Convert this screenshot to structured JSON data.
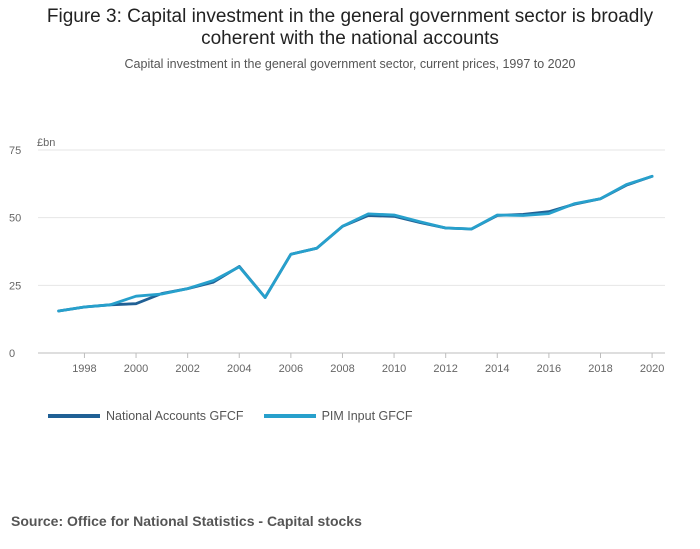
{
  "title_line1": "Figure 3: Capital investment in the general government sector is broadly",
  "title_line2": "coherent with the national accounts",
  "subtitle": "Capital investment in the general government sector, current prices, 1997 to 2020",
  "source": "Source: Office for National Statistics - Capital stocks",
  "chart_data": {
    "type": "line",
    "title": "Figure 3: Capital investment in the general government sector is broadly coherent with the national accounts",
    "subtitle": "Capital investment in the general government sector, current prices, 1997 to 2020",
    "xlabel": "",
    "ylabel": "£bn",
    "x": [
      1997,
      1998,
      1999,
      2000,
      2001,
      2002,
      2003,
      2004,
      2005,
      2006,
      2007,
      2008,
      2009,
      2010,
      2011,
      2012,
      2013,
      2014,
      2015,
      2016,
      2017,
      2018,
      2019,
      2020
    ],
    "xlim": [
      1996.2,
      2020.5
    ],
    "ylim": [
      0,
      75
    ],
    "xticks": [
      1998,
      2000,
      2002,
      2004,
      2006,
      2008,
      2010,
      2012,
      2014,
      2016,
      2018,
      2020
    ],
    "yticks": [
      0,
      25,
      50,
      75
    ],
    "grid": true,
    "legend_position": "bottom-left",
    "series": [
      {
        "name": "National Accounts GFCF",
        "color": "#206095",
        "values": [
          15.5,
          17.0,
          17.8,
          18.2,
          22.0,
          23.8,
          26.2,
          32.0,
          20.5,
          36.5,
          38.7,
          46.8,
          50.8,
          50.5,
          48.2,
          46.2,
          45.8,
          50.8,
          51.2,
          52.2,
          55.0,
          57.0,
          62.0,
          65.3
        ]
      },
      {
        "name": "PIM Input GFCF",
        "color": "#27a0cc",
        "values": [
          15.5,
          17.0,
          17.8,
          21.0,
          21.8,
          23.8,
          26.8,
          31.8,
          20.5,
          36.5,
          38.7,
          46.8,
          51.4,
          51.0,
          48.5,
          46.2,
          45.8,
          51.0,
          50.8,
          51.5,
          55.2,
          57.0,
          62.2,
          65.3
        ]
      }
    ]
  }
}
